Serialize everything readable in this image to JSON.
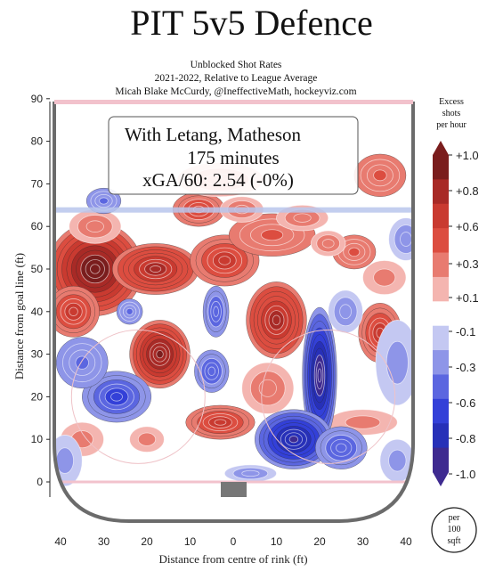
{
  "chart_data": {
    "type": "heatmap",
    "title": "PIT 5v5 Defence",
    "subtitle_lines": [
      "Unblocked Shot Rates",
      "2021-2022, Relative to League Average",
      "Micah Blake McCurdy, @IneffectiveMath, hockeyviz.com"
    ],
    "annotation": {
      "line1": "With Letang, Matheson",
      "line2": "175 minutes",
      "line3": "xGA/60: 2.54 (-0%)"
    },
    "xlabel": "Distance from centre of rink (ft)",
    "ylabel": "Distance from goal line (ft)",
    "x_ticks": [
      40,
      30,
      20,
      10,
      0,
      10,
      20,
      30,
      40
    ],
    "y_ticks": [
      0,
      10,
      20,
      30,
      40,
      50,
      60,
      70,
      80,
      90
    ],
    "xlim": [
      -43,
      43
    ],
    "ylim": [
      -5,
      90
    ],
    "colorbar": {
      "title_lines": [
        "Excess",
        "shots",
        "per hour"
      ],
      "labels": [
        "+1.0",
        "+0.8",
        "+0.6",
        "+0.3",
        "+0.1",
        "-0.1",
        "-0.3",
        "-0.6",
        "-0.8",
        "-1.0"
      ],
      "colors": [
        "#7a1d1d",
        "#a82a26",
        "#c93a30",
        "#dc4d40",
        "#e87b70",
        "#f4b5b0",
        "#ffffff",
        "#c4c8f2",
        "#8e95e8",
        "#5b66e0",
        "#3340d8",
        "#2730b8",
        "#3e2a90"
      ]
    },
    "unit_badge": [
      "per",
      "100",
      "sqft"
    ],
    "blobs": [
      {
        "x": -32,
        "y": 50,
        "rx": 11,
        "ry": 11,
        "v": 1.0
      },
      {
        "x": -37,
        "y": 40,
        "rx": 6,
        "ry": 6,
        "v": 0.6
      },
      {
        "x": -18,
        "y": 50,
        "rx": 10,
        "ry": 6,
        "v": 0.8
      },
      {
        "x": -2,
        "y": 52,
        "rx": 8,
        "ry": 6,
        "v": 0.6
      },
      {
        "x": 9,
        "y": 58,
        "rx": 10,
        "ry": 5,
        "v": 0.4
      },
      {
        "x": -8,
        "y": 64,
        "rx": 6,
        "ry": 4,
        "v": 0.5
      },
      {
        "x": 2,
        "y": 64,
        "rx": 5,
        "ry": 3,
        "v": 0.3
      },
      {
        "x": 16,
        "y": 62,
        "rx": 6,
        "ry": 3,
        "v": 0.3
      },
      {
        "x": 28,
        "y": 54,
        "rx": 5,
        "ry": 4,
        "v": 0.4
      },
      {
        "x": 22,
        "y": 56,
        "rx": 4,
        "ry": 3,
        "v": 0.3
      },
      {
        "x": 34,
        "y": 72,
        "rx": 6,
        "ry": 5,
        "v": 0.4
      },
      {
        "x": -32,
        "y": 60,
        "rx": 6,
        "ry": 4,
        "v": 0.3
      },
      {
        "x": -3,
        "y": 71,
        "rx": 10,
        "ry": 4,
        "v": 0.3
      },
      {
        "x": -17,
        "y": 30,
        "rx": 7,
        "ry": 8,
        "v": 0.9
      },
      {
        "x": 10,
        "y": 38,
        "rx": 7,
        "ry": 9,
        "v": 0.8
      },
      {
        "x": 34,
        "y": 35,
        "rx": 5,
        "ry": 7,
        "v": 0.6
      },
      {
        "x": -3,
        "y": 14,
        "rx": 8,
        "ry": 4,
        "v": 0.6
      },
      {
        "x": 8,
        "y": 22,
        "rx": 6,
        "ry": 6,
        "v": 0.3
      },
      {
        "x": -20,
        "y": 10,
        "rx": 4,
        "ry": 3,
        "v": 0.2
      },
      {
        "x": -35,
        "y": 10,
        "rx": 5,
        "ry": 4,
        "v": 0.2
      },
      {
        "x": 30,
        "y": 14,
        "rx": 8,
        "ry": 3,
        "v": 0.2
      },
      {
        "x": 35,
        "y": 48,
        "rx": 5,
        "ry": 4,
        "v": 0.2
      },
      {
        "x": 20,
        "y": 25,
        "rx": 4,
        "ry": 16,
        "v": -1.0
      },
      {
        "x": 14,
        "y": 10,
        "rx": 9,
        "ry": 7,
        "v": -0.9
      },
      {
        "x": 25,
        "y": 8,
        "rx": 6,
        "ry": 5,
        "v": -0.5
      },
      {
        "x": -27,
        "y": 20,
        "rx": 8,
        "ry": 6,
        "v": -0.6
      },
      {
        "x": -35,
        "y": 28,
        "rx": 6,
        "ry": 6,
        "v": -0.4
      },
      {
        "x": -5,
        "y": 26,
        "rx": 4,
        "ry": 5,
        "v": -0.5
      },
      {
        "x": -4,
        "y": 40,
        "rx": 3,
        "ry": 6,
        "v": -0.5
      },
      {
        "x": -24,
        "y": 40,
        "rx": 3,
        "ry": 3,
        "v": -0.4
      },
      {
        "x": -30,
        "y": 66,
        "rx": 4,
        "ry": 3,
        "v": -0.4
      },
      {
        "x": 38,
        "y": 28,
        "rx": 5,
        "ry": 10,
        "v": -0.2
      },
      {
        "x": 26,
        "y": 40,
        "rx": 4,
        "ry": 5,
        "v": -0.3
      },
      {
        "x": 40,
        "y": 57,
        "rx": 4,
        "ry": 5,
        "v": -0.3
      },
      {
        "x": -39,
        "y": 5,
        "rx": 4,
        "ry": 6,
        "v": -0.2
      },
      {
        "x": 38,
        "y": 5,
        "rx": 4,
        "ry": 5,
        "v": -0.2
      },
      {
        "x": 4,
        "y": 2,
        "rx": 6,
        "ry": 2,
        "v": -0.3
      }
    ]
  }
}
